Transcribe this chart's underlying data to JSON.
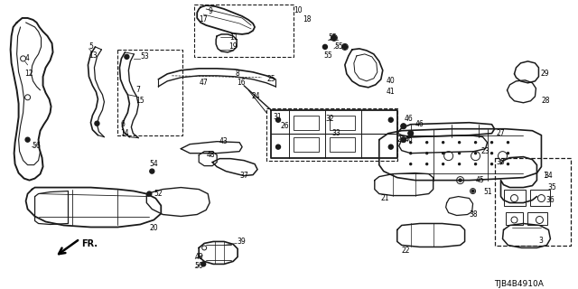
{
  "diagram_id": "TJB4B4910A",
  "bg_color": "#ffffff",
  "fig_width": 6.4,
  "fig_height": 3.2,
  "dpi": 100,
  "image_data_b64": ""
}
